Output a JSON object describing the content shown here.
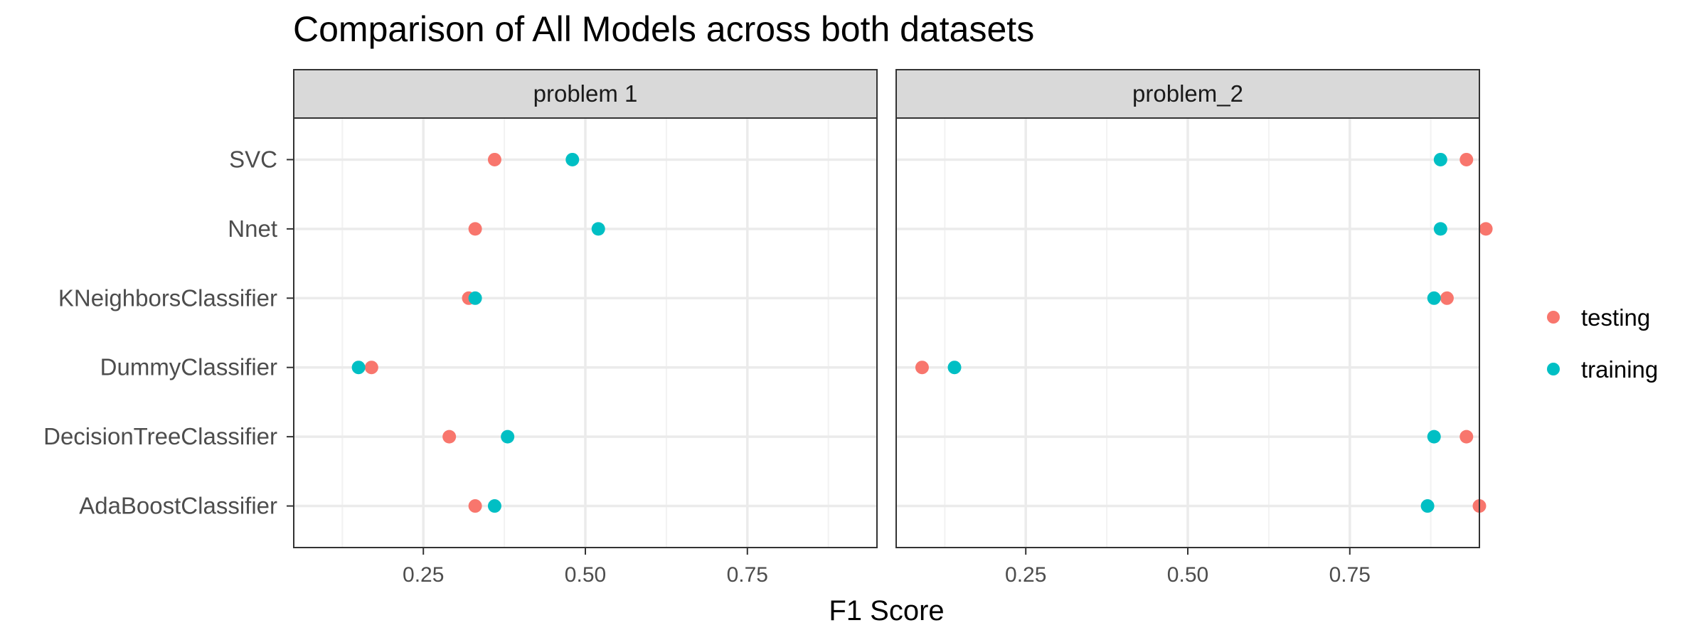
{
  "chart_data": {
    "type": "scatter",
    "title": "Comparison of All Models across both datasets",
    "xlabel": "F1 Score",
    "ylabel": "",
    "xlim": [
      0.05,
      0.95
    ],
    "xticks": [
      0.25,
      0.5,
      0.75
    ],
    "xtick_labels": [
      "0.25",
      "0.50",
      "0.75"
    ],
    "grid": true,
    "legend_position": "right",
    "categories": [
      "SVC",
      "Nnet",
      "KNeighborsClassifier",
      "DummyClassifier",
      "DecisionTreeClassifier",
      "AdaBoostClassifier"
    ],
    "series_meta": [
      {
        "name": "testing",
        "color": "#F8766D"
      },
      {
        "name": "training",
        "color": "#00BFC4"
      }
    ],
    "panels": [
      {
        "strip": "problem 1",
        "series": [
          {
            "name": "testing",
            "values": [
              0.36,
              0.33,
              0.32,
              0.17,
              0.29,
              0.33
            ]
          },
          {
            "name": "training",
            "values": [
              0.48,
              0.52,
              0.33,
              0.15,
              0.38,
              0.36
            ]
          }
        ]
      },
      {
        "strip": "problem_2",
        "series": [
          {
            "name": "testing",
            "values": [
              0.93,
              0.96,
              0.9,
              0.09,
              0.93,
              0.95
            ]
          },
          {
            "name": "training",
            "values": [
              0.89,
              0.89,
              0.88,
              0.14,
              0.88,
              0.87
            ]
          }
        ]
      }
    ]
  }
}
